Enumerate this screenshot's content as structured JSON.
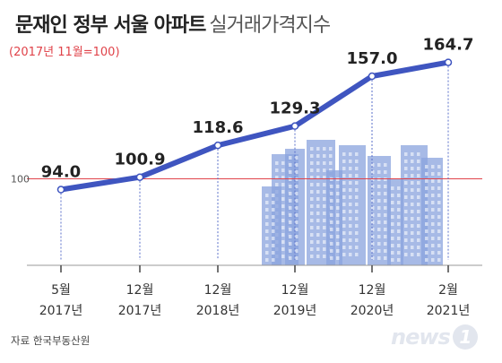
{
  "header": {
    "title_main": "문재인 정부 서울 아파트",
    "title_sub": "실거래가격지수",
    "base_note": "(2017년 11월=100)"
  },
  "footer": {
    "source": "자료 한국부동산원",
    "logo_text": "news",
    "logo_num": "1"
  },
  "colors": {
    "line": "#3f55c0",
    "reference": "#e0434a",
    "buildings": "#8aa3dd"
  },
  "chart_data": {
    "type": "line",
    "title": "문재인 정부 서울 아파트 실거래가격지수",
    "subtitle": "(2017년 11월=100)",
    "categories": [
      {
        "month": "5월",
        "year": "2017년"
      },
      {
        "month": "12월",
        "year": "2017년"
      },
      {
        "month": "12월",
        "year": "2018년"
      },
      {
        "month": "12월",
        "year": "2019년"
      },
      {
        "month": "12월",
        "year": "2020년"
      },
      {
        "month": "2월",
        "year": "2021년"
      }
    ],
    "values": [
      94.0,
      100.9,
      118.6,
      129.3,
      157.0,
      164.7
    ],
    "value_labels": [
      "94.0",
      "100.9",
      "118.6",
      "129.3",
      "157.0",
      "164.7"
    ],
    "reference_line": {
      "value": 100,
      "label": "100"
    },
    "ylim": [
      70,
      175
    ],
    "grid": false,
    "legend": "none",
    "xlabel": "",
    "ylabel": ""
  }
}
